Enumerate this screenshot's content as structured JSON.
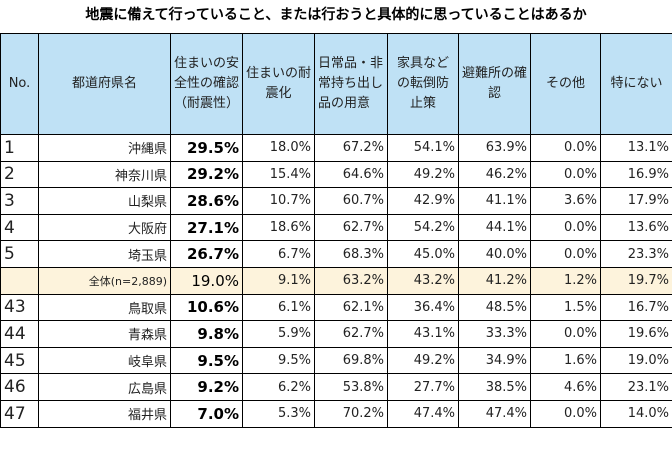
{
  "title": "地震に備えて行っていること、または行おうと具体的に思っていることはあるか",
  "headers": [
    "No.",
    "都道府県名",
    "住まいの安全性の確認（耐震性）",
    "住まいの耐震化",
    "日常品・非常持ち出し品の用意",
    "家具などの転倒防止策",
    "避難所の確認",
    "その他",
    "特にない"
  ],
  "rows": [
    {
      "no": "1",
      "pref": "沖縄県",
      "v": [
        "29.5%",
        "18.0%",
        "67.2%",
        "54.1%",
        "63.9%",
        "0.0%",
        "13.1%"
      ]
    },
    {
      "no": "2",
      "pref": "神奈川県",
      "v": [
        "29.2%",
        "15.4%",
        "64.6%",
        "49.2%",
        "46.2%",
        "0.0%",
        "16.9%"
      ]
    },
    {
      "no": "3",
      "pref": "山梨県",
      "v": [
        "28.6%",
        "10.7%",
        "60.7%",
        "42.9%",
        "41.1%",
        "3.6%",
        "17.9%"
      ]
    },
    {
      "no": "4",
      "pref": "大阪府",
      "v": [
        "27.1%",
        "18.6%",
        "62.7%",
        "54.2%",
        "44.1%",
        "0.0%",
        "13.6%"
      ]
    },
    {
      "no": "5",
      "pref": "埼玉県",
      "v": [
        "26.7%",
        "6.7%",
        "68.3%",
        "45.0%",
        "40.0%",
        "0.0%",
        "23.3%"
      ]
    },
    {
      "no": "",
      "pref": "全体(n=2,889)",
      "v": [
        "19.0%",
        "9.1%",
        "63.2%",
        "43.2%",
        "41.2%",
        "1.2%",
        "19.7%"
      ],
      "total": true
    },
    {
      "no": "43",
      "pref": "鳥取県",
      "v": [
        "10.6%",
        "6.1%",
        "62.1%",
        "36.4%",
        "48.5%",
        "1.5%",
        "16.7%"
      ]
    },
    {
      "no": "44",
      "pref": "青森県",
      "v": [
        "9.8%",
        "5.9%",
        "62.7%",
        "43.1%",
        "33.3%",
        "0.0%",
        "19.6%"
      ]
    },
    {
      "no": "45",
      "pref": "岐阜県",
      "v": [
        "9.5%",
        "9.5%",
        "69.8%",
        "49.2%",
        "34.9%",
        "1.6%",
        "19.0%"
      ]
    },
    {
      "no": "46",
      "pref": "広島県",
      "v": [
        "9.2%",
        "6.2%",
        "53.8%",
        "27.7%",
        "38.5%",
        "4.6%",
        "23.1%"
      ]
    },
    {
      "no": "47",
      "pref": "福井県",
      "v": [
        "7.0%",
        "5.3%",
        "70.2%",
        "47.4%",
        "47.4%",
        "0.0%",
        "14.0%"
      ]
    }
  ],
  "colors": {
    "header_bg": "#bfe1f5",
    "total_row_bg": "#fdf3dc"
  }
}
